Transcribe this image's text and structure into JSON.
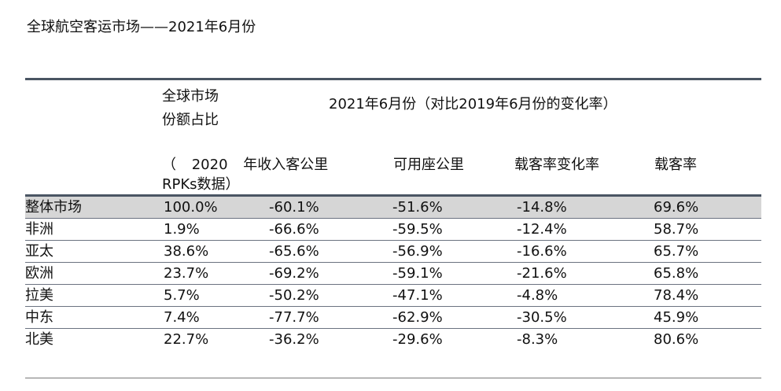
{
  "title": "全球航空客运市场——2021年6月份",
  "header": {
    "share_line1": "全球市场",
    "share_line2": "份额占比",
    "period": "2021年6月份（对比2019年6月份的变化率）",
    "share_line3": "（ 2020 年收入客公里",
    "share_line4": "RPKs数据）",
    "col_rpk": "",
    "col_ask": "可用座公里",
    "col_plf_change": "载客率变化率",
    "col_plf": "载客率"
  },
  "rows": [
    {
      "region": "整体市场",
      "share": "100.0%",
      "rpk": "-60.1%",
      "ask": "-51.6%",
      "plf_change": "-14.8%",
      "plf": "69.6%"
    },
    {
      "region": "非洲",
      "share": "1.9%",
      "rpk": "-66.6%",
      "ask": "-59.5%",
      "plf_change": "-12.4%",
      "plf": "58.7%"
    },
    {
      "region": "亚太",
      "share": "38.6%",
      "rpk": "-65.6%",
      "ask": "-56.9%",
      "plf_change": "-16.6%",
      "plf": "65.7%"
    },
    {
      "region": "欧洲",
      "share": "23.7%",
      "rpk": "-69.2%",
      "ask": "-59.1%",
      "plf_change": "-21.6%",
      "plf": "65.8%"
    },
    {
      "region": "拉美",
      "share": "5.7%",
      "rpk": "-50.2%",
      "ask": "-47.1%",
      "plf_change": "-4.8%",
      "plf": "78.4%"
    },
    {
      "region": "中东",
      "share": "7.4%",
      "rpk": "-77.7%",
      "ask": "-62.9%",
      "plf_change": "-30.5%",
      "plf": "45.9%"
    },
    {
      "region": "北美",
      "share": "22.7%",
      "rpk": "-36.2%",
      "ask": "-29.6%",
      "plf_change": "-8.3%",
      "plf": "80.6%"
    }
  ]
}
